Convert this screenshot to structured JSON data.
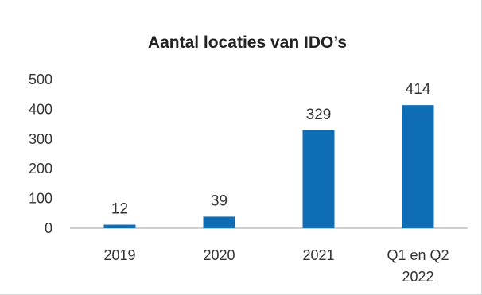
{
  "chart_data": {
    "type": "bar",
    "title": "Aantal locaties van IDO’s",
    "categories": [
      [
        "2019"
      ],
      [
        "2020"
      ],
      [
        "2021"
      ],
      [
        "Q1 en Q2",
        "2022"
      ]
    ],
    "values": [
      12,
      39,
      329,
      414
    ],
    "data_labels": [
      "12",
      "39",
      "329",
      "414"
    ],
    "ylim": [
      0,
      500
    ],
    "yticks": [
      "0",
      "100",
      "200",
      "300",
      "400",
      "500"
    ],
    "grid": false,
    "legend": "none",
    "colors": {
      "bar": "#0f6db5",
      "axis": "#bfbfbf"
    }
  }
}
